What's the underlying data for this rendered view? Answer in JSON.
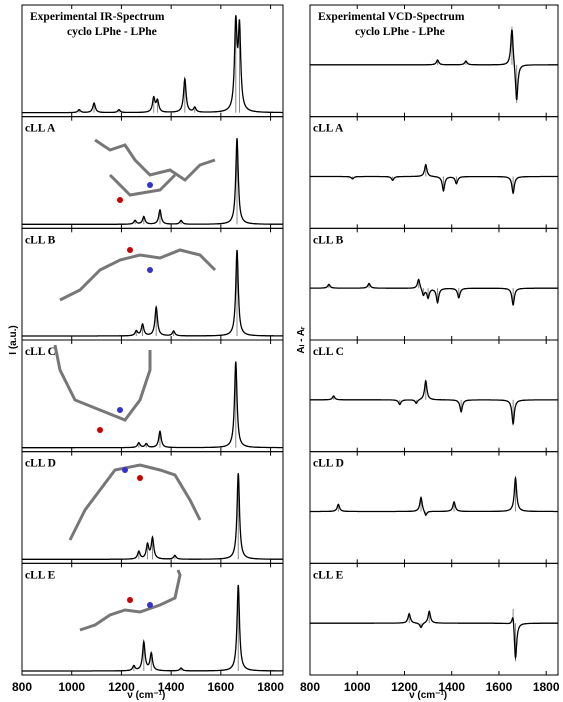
{
  "chart_data": [
    {
      "type": "stick",
      "ylabel": "I (a.u.)",
      "xlabel": "ν (cm⁻¹)",
      "xlim": [
        800,
        1850
      ],
      "ylim": [
        0,
        1
      ],
      "xticks": [
        800,
        1000,
        1200,
        1400,
        1600,
        1800
      ],
      "panels": [
        {
          "title": "Experimental IR-Spectrum",
          "subtitle": "cyclo LPhe - LPhe",
          "x": [
            1030,
            1090,
            1190,
            1330,
            1345,
            1455,
            1495,
            1660,
            1675
          ],
          "values": [
            0.03,
            0.1,
            0.03,
            0.15,
            0.12,
            0.35,
            0.05,
            0.9,
            0.85
          ]
        },
        {
          "title": "cLL A",
          "x": [
            1255,
            1290,
            1355,
            1440,
            1665
          ],
          "values": [
            0.04,
            0.08,
            0.15,
            0.04,
            0.9
          ]
        },
        {
          "title": "cLL B",
          "x": [
            1260,
            1285,
            1340,
            1410,
            1665
          ],
          "values": [
            0.05,
            0.12,
            0.3,
            0.05,
            0.9
          ]
        },
        {
          "title": "cLL C",
          "x": [
            1270,
            1300,
            1355,
            1660
          ],
          "values": [
            0.05,
            0.04,
            0.17,
            0.9
          ]
        },
        {
          "title": "cLL D",
          "x": [
            1270,
            1305,
            1325,
            1415,
            1670
          ],
          "values": [
            0.08,
            0.15,
            0.22,
            0.04,
            0.9
          ]
        },
        {
          "title": "cLL E",
          "x": [
            1250,
            1290,
            1320,
            1440,
            1670
          ],
          "values": [
            0.05,
            0.3,
            0.18,
            0.03,
            0.9
          ]
        }
      ]
    },
    {
      "type": "stick",
      "ylabel": "Aₗ - Aᵣ",
      "xlabel": "ν (cm⁻¹)",
      "xlim": [
        800,
        1850
      ],
      "ylim": [
        -1,
        1
      ],
      "xticks": [
        800,
        1000,
        1200,
        1400,
        1600,
        1800
      ],
      "panels": [
        {
          "title": "Experimental VCD-Spectrum",
          "subtitle": "cyclo LPhe - LPhe",
          "x": [
            1340,
            1460,
            1655,
            1675
          ],
          "values": [
            0.1,
            0.08,
            0.8,
            -0.8
          ]
        },
        {
          "title": "cLL A",
          "x": [
            980,
            1150,
            1290,
            1365,
            1420,
            1660
          ],
          "values": [
            -0.05,
            -0.08,
            0.25,
            -0.3,
            -0.15,
            -0.35
          ]
        },
        {
          "title": "cLL B",
          "x": [
            880,
            1050,
            1260,
            1280,
            1300,
            1340,
            1430,
            1660
          ],
          "values": [
            0.08,
            0.1,
            0.2,
            -0.15,
            -0.2,
            -0.3,
            -0.2,
            -0.35
          ]
        },
        {
          "title": "cLL C",
          "x": [
            900,
            1180,
            1250,
            1290,
            1440,
            1660
          ],
          "values": [
            0.08,
            -0.1,
            -0.08,
            0.4,
            -0.25,
            -0.5
          ]
        },
        {
          "title": "cLL D",
          "x": [
            920,
            1270,
            1290,
            1410,
            1670
          ],
          "values": [
            0.15,
            0.3,
            -0.1,
            0.2,
            0.7
          ]
        },
        {
          "title": "cLL E",
          "x": [
            1220,
            1270,
            1305,
            1660,
            1670
          ],
          "values": [
            0.2,
            -0.1,
            0.25,
            0.3,
            -0.8
          ]
        }
      ]
    }
  ]
}
